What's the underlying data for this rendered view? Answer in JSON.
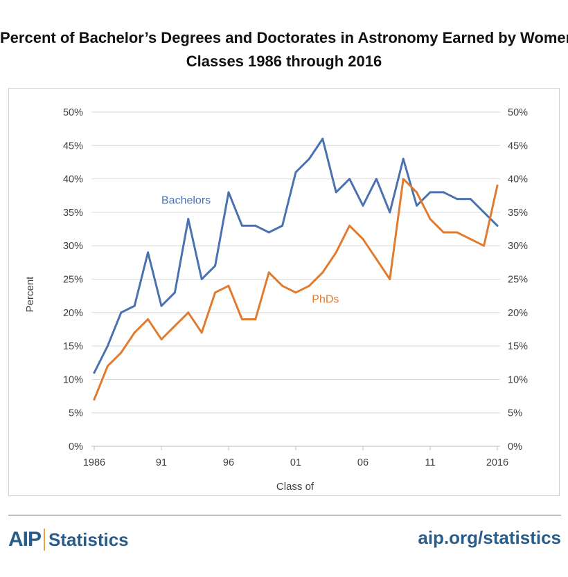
{
  "title_lines": [
    "Percent of Bachelor’s Degrees and Doctorates in Astronomy Earned by Women,",
    "Classes 1986 through 2016"
  ],
  "footer": {
    "logo_main": "AIP",
    "logo_sub": "Statistics",
    "site": "aip.org/statistics"
  },
  "colors": {
    "bachelors": "#4a72b0",
    "phds": "#e07b30",
    "grid": "#d9d9d9",
    "brand": "#2a5c8a",
    "brand_accent": "#e8a33a"
  },
  "chart_data": {
    "type": "line",
    "xlabel": "Class of",
    "ylabel": "Percent",
    "ylim": [
      0,
      50
    ],
    "y_ticks": [
      "0%",
      "5%",
      "10%",
      "15%",
      "20%",
      "25%",
      "30%",
      "35%",
      "40%",
      "45%",
      "50%"
    ],
    "y_tick_values": [
      0,
      5,
      10,
      15,
      20,
      25,
      30,
      35,
      40,
      45,
      50
    ],
    "y_ticks_right": [
      "0%",
      "5%",
      "10%",
      "15%",
      "20%",
      "25%",
      "30%",
      "35%",
      "40%",
      "45%",
      "50%"
    ],
    "x_ticks": [
      {
        "year": 1986,
        "label": "1986"
      },
      {
        "year": 1991,
        "label": "91"
      },
      {
        "year": 1996,
        "label": "96"
      },
      {
        "year": 2001,
        "label": "01"
      },
      {
        "year": 2006,
        "label": "06"
      },
      {
        "year": 2011,
        "label": "11"
      },
      {
        "year": 2016,
        "label": "2016"
      }
    ],
    "xlim": [
      1986,
      2016
    ],
    "grid": "horizontal",
    "x": [
      1986,
      1987,
      1988,
      1989,
      1990,
      1991,
      1992,
      1993,
      1994,
      1995,
      1996,
      1997,
      1998,
      1999,
      2000,
      2001,
      2002,
      2003,
      2004,
      2005,
      2006,
      2007,
      2008,
      2009,
      2010,
      2011,
      2012,
      2013,
      2014,
      2015,
      2016
    ],
    "series": [
      {
        "name": "Bachelors",
        "color": "#4a72b0",
        "label_at": {
          "x": 1991,
          "y": 36.3
        },
        "values": [
          11,
          15,
          20,
          21,
          29,
          21,
          23,
          34,
          25,
          27,
          38,
          33,
          33,
          32,
          33,
          41,
          43,
          46,
          38,
          40,
          36,
          40,
          35,
          43,
          36,
          38,
          38,
          37,
          37,
          35,
          33
        ]
      },
      {
        "name": "PhDs",
        "color": "#e07b30",
        "label_at": {
          "x": 2002.2,
          "y": 21.5
        },
        "values": [
          7,
          12,
          14,
          17,
          19,
          16,
          18,
          20,
          17,
          23,
          24,
          19,
          19,
          26,
          24,
          23,
          24,
          26,
          29,
          33,
          31,
          28,
          25,
          40,
          38,
          34,
          32,
          32,
          31,
          30,
          39
        ]
      }
    ]
  }
}
